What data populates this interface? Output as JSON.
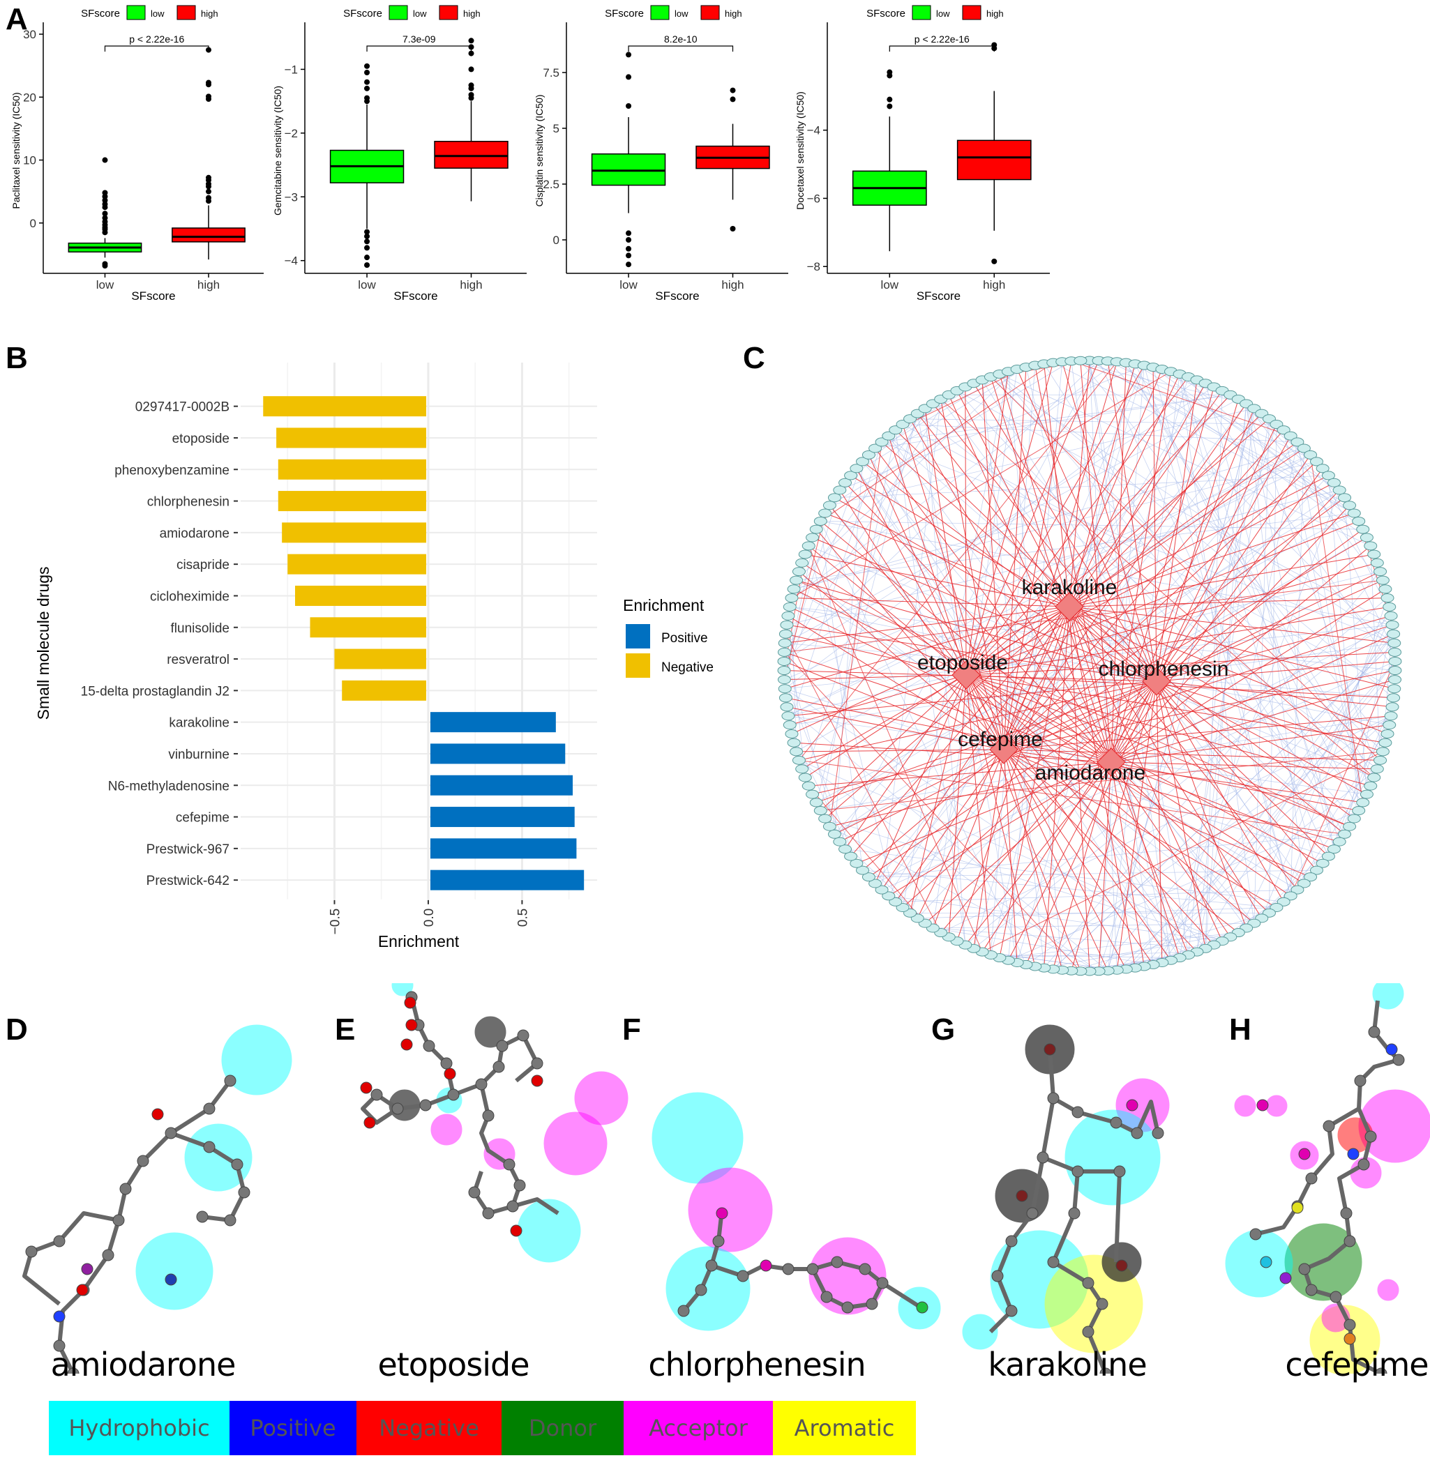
{
  "panels": {
    "a": "A",
    "b": "B",
    "c": "C",
    "d": "D",
    "e": "E",
    "f": "F",
    "g": "G",
    "h": "H"
  },
  "legend_title": "SFscore",
  "legend_low": "low",
  "legend_high": "high",
  "colors": {
    "low": "#00ff00",
    "high": "#ff0000",
    "positive": "#0070c0",
    "negative": "#f0c000",
    "network_edge": "#e8262a",
    "network_weak": "#9ab0e6",
    "node_fill": "#cdeeee"
  },
  "chart_data": [
    {
      "type": "box",
      "title": "",
      "xlabel": "SFscore",
      "ylabel": "Paclitaxel sensitivity (IC50)",
      "categories": [
        "low",
        "high"
      ],
      "ylim": [
        -8,
        31
      ],
      "yticks": [
        0,
        10,
        20,
        30
      ],
      "pvalue": "p < 2.22e-16",
      "boxes": [
        {
          "q1": -4.6,
          "median": -3.9,
          "q3": -3.2,
          "whislo": -5.5,
          "whishi": -2.4,
          "outliers": [
            -6.5,
            -6.8,
            -1.5,
            -1.0,
            -0.7,
            -0.3,
            0.2,
            0.8,
            1.5,
            2.5,
            3.0,
            3.6,
            4.2,
            4.8,
            10
          ]
        },
        {
          "q1": -3.0,
          "median": -2.2,
          "q3": -0.8,
          "whislo": -5.8,
          "whishi": 2.8,
          "outliers": [
            3.5,
            4.0,
            5.0,
            5.8,
            6.2,
            6.8,
            7.2,
            19.7,
            20.1,
            22,
            22.3,
            27.5
          ]
        }
      ]
    },
    {
      "type": "box",
      "title": "",
      "xlabel": "SFscore",
      "ylabel": "Gemcitabine sensitivity (IC50)",
      "categories": [
        "low",
        "high"
      ],
      "ylim": [
        -4.2,
        -0.35
      ],
      "yticks": [
        -4,
        -3,
        -2,
        -1
      ],
      "pvalue": "7.3e-09",
      "boxes": [
        {
          "q1": -2.78,
          "median": -2.52,
          "q3": -2.27,
          "whislo": -3.5,
          "whishi": -1.55,
          "outliers": [
            -0.95,
            -1.05,
            -1.2,
            -1.3,
            -1.45,
            -1.5,
            -3.55,
            -3.62,
            -3.7,
            -3.8,
            -3.95,
            -4.07
          ]
        },
        {
          "q1": -2.55,
          "median": -2.36,
          "q3": -2.13,
          "whislo": -3.07,
          "whishi": -1.5,
          "outliers": [
            -0.55,
            -0.65,
            -0.75,
            -1.0,
            -1.25,
            -1.3,
            -1.4,
            -1.45
          ]
        }
      ]
    },
    {
      "type": "box",
      "title": "",
      "xlabel": "SFscore",
      "ylabel": "Cisplatin sensitivity (IC50)",
      "categories": [
        "low",
        "high"
      ],
      "ylim": [
        -1.5,
        9.5
      ],
      "yticks": [
        0.0,
        2.5,
        5.0,
        7.5
      ],
      "pvalue": "8.2e-10",
      "boxes": [
        {
          "q1": 2.45,
          "median": 3.1,
          "q3": 3.85,
          "whislo": 1.2,
          "whishi": 5.5,
          "outliers": [
            8.3,
            7.3,
            6.0,
            0.3,
            0.0,
            -0.4,
            -0.7,
            -1.1
          ]
        },
        {
          "q1": 3.2,
          "median": 3.68,
          "q3": 4.2,
          "whislo": 1.8,
          "whishi": 5.2,
          "outliers": [
            6.7,
            6.3,
            0.5
          ]
        }
      ]
    },
    {
      "type": "box",
      "title": "",
      "xlabel": "SFscore",
      "ylabel": "Docetaxel sensitivity (IC50)",
      "categories": [
        "low",
        "high"
      ],
      "ylim": [
        -8.2,
        -1.0
      ],
      "yticks": [
        -8,
        -6,
        -4
      ],
      "pvalue": "p < 2.22e-16",
      "boxes": [
        {
          "q1": -6.2,
          "median": -5.7,
          "q3": -5.2,
          "whislo": -7.55,
          "whishi": -3.6,
          "outliers": [
            -2.3,
            -2.4,
            -3.1,
            -3.3
          ]
        },
        {
          "q1": -5.45,
          "median": -4.8,
          "q3": -4.3,
          "whislo": -6.95,
          "whishi": -2.85,
          "outliers": [
            -1.5,
            -1.6,
            -7.85
          ]
        }
      ]
    },
    {
      "type": "bar",
      "orientation": "horizontal",
      "title": "",
      "xlabel": "Enrichment",
      "ylabel": "Small molecule drugs",
      "legend_title": "Enrichment",
      "legend_positive": "Positive",
      "legend_negative": "Negative",
      "xlim": [
        -1.0,
        0.9
      ],
      "xticks": [
        -0.5,
        0.0,
        0.5
      ],
      "xtick_labels": [
        "-0.5",
        "0.0",
        "0.5"
      ],
      "categories": [
        "0297417-0002B",
        "etoposide",
        "phenoxybenzamine",
        "chlorphenesin",
        "amiodarone",
        "cisapride",
        "cicloheximide",
        "flunisolide",
        "resveratrol",
        "15-delta prostaglandin J2",
        "karakoline",
        "vinburnine",
        "N6-methyladenosine",
        "cefepime",
        "Prestwick-967",
        "Prestwick-642"
      ],
      "values": [
        -0.88,
        -0.81,
        -0.8,
        -0.8,
        -0.78,
        -0.75,
        -0.71,
        -0.63,
        -0.5,
        -0.46,
        0.68,
        0.73,
        0.77,
        0.78,
        0.79,
        0.83
      ],
      "groups": [
        "Negative",
        "Negative",
        "Negative",
        "Negative",
        "Negative",
        "Negative",
        "Negative",
        "Negative",
        "Negative",
        "Negative",
        "Positive",
        "Positive",
        "Positive",
        "Positive",
        "Positive",
        "Positive"
      ]
    }
  ],
  "network": {
    "hubs": [
      {
        "name": "karakoline"
      },
      {
        "name": "etoposide"
      },
      {
        "name": "chlorphenesin"
      },
      {
        "name": "cefepime"
      },
      {
        "name": "amiodarone"
      }
    ]
  },
  "molecules": [
    "amiodarone",
    "etoposide",
    "chlorphenesin",
    "karakoline",
    "cefepime"
  ],
  "feature_legend": [
    {
      "label": "Hydrophobic",
      "color": "#00ffff"
    },
    {
      "label": "Positive",
      "color": "#0000ff"
    },
    {
      "label": "Negative",
      "color": "#ff0000"
    },
    {
      "label": "Donor",
      "color": "#008000"
    },
    {
      "label": "Acceptor",
      "color": "#ff00ff"
    },
    {
      "label": "Aromatic",
      "color": "#ffff00"
    }
  ]
}
